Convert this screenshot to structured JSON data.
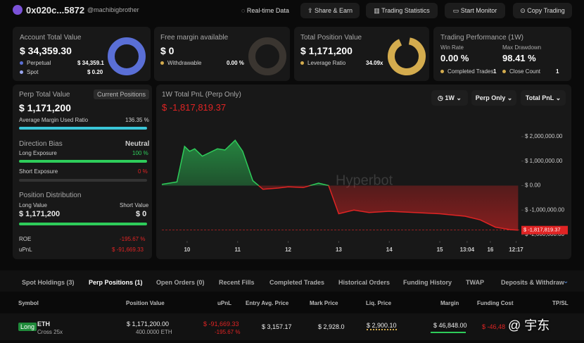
{
  "header": {
    "account": "0x020c...5872",
    "handle": "@machibigbrother",
    "buttons": [
      "Real-time Data",
      "Share & Earn",
      "Trading Statistics",
      "Start Monitor",
      "Copy Trading"
    ]
  },
  "account_total": {
    "title": "Account Total Value",
    "value": "$ 34,359.30",
    "perpetual_label": "Perpetual",
    "perpetual": "$ 34,359.1",
    "spot_label": "Spot",
    "spot": "$ 0.20"
  },
  "free_margin": {
    "title": "Free margin available",
    "value": "$ 0",
    "withdrawable_label": "Withdrawable",
    "withdrawable": "0.00 %"
  },
  "position_value": {
    "title": "Total Position Value",
    "value": "$ 1,171,200",
    "leverage_label": "Leverage Ratio",
    "leverage": "34.09x"
  },
  "performance": {
    "title": "Trading Performance (1W)",
    "win_label": "Win Rate",
    "win": "0.00 %",
    "drawdown_label": "Max Drawdown",
    "drawdown": "98.41 %",
    "completed_label": "Completed Trades",
    "completed": "1",
    "close_label": "Close Count",
    "close": "1"
  },
  "perp": {
    "title": "Perp Total Value",
    "tag": "Current Positions",
    "value": "$ 1,171,200",
    "margin_label": "Average Margin Used Ratio",
    "margin": "136.35 %",
    "bias_label": "Direction Bias",
    "bias": "Neutral",
    "long_label": "Long Exposure",
    "long": "100 %",
    "short_label": "Short Exposure",
    "short": "0 %",
    "distribution": "Position Distribution",
    "long_value_label": "Long Value",
    "short_value_label": "Short Value",
    "long_value": "$ 1,171,200",
    "short_value": "$ 0",
    "roe_label": "ROE",
    "roe": "-195.67 %",
    "upnl_label": "uPnL",
    "upnl": "$ -91,669.33"
  },
  "chart_data": {
    "type": "line",
    "title": "1W Total PnL (Perp Only)",
    "subtitle": "$ -1,817,819.37",
    "controls": [
      "1W",
      "Perp Only",
      "Total PnL"
    ],
    "watermark": "Hyperbot",
    "color": "#e02424",
    "positive_color": "#2ecc5a",
    "x": [
      9.5,
      9.65,
      9.8,
      9.95,
      10.05,
      10.15,
      10.3,
      10.45,
      10.6,
      10.75,
      10.95,
      11.1,
      11.3,
      11.5,
      11.8,
      12.0,
      12.3,
      12.6,
      12.8,
      13.0,
      13.3,
      13.6,
      14.0,
      14.5,
      15.0,
      15.5,
      15.8,
      16.1,
      16.4,
      16.55
    ],
    "values": [
      50000,
      100000,
      150000,
      1600000,
      1400000,
      1500000,
      1200000,
      1350000,
      1500000,
      1450000,
      1850000,
      1400000,
      200000,
      -150000,
      -100000,
      -50000,
      -80000,
      100000,
      0,
      -1150000,
      -1000000,
      -1100000,
      -1050000,
      -1100000,
      -1150000,
      -1250000,
      -1400000,
      -1700000,
      -1800000,
      -1817819.37
    ],
    "last_label": "$ -1,817,819.37",
    "xlim": [
      9.5,
      16.6
    ],
    "xticks": [
      {
        "value": 10,
        "label": "10"
      },
      {
        "value": 11,
        "label": "11"
      },
      {
        "value": 12,
        "label": "12"
      },
      {
        "value": 13,
        "label": "13"
      },
      {
        "value": 14,
        "label": "14"
      },
      {
        "value": 15,
        "label": "15"
      },
      {
        "value": 15.54,
        "label": "13:04"
      },
      {
        "value": 16,
        "label": "16"
      },
      {
        "value": 16.51,
        "label": "12:17"
      }
    ],
    "ylim": [
      -2200000,
      2400000
    ],
    "yticks": [
      {
        "value": 2000000,
        "label": "$ 2,000,000.00"
      },
      {
        "value": 1000000,
        "label": "$ 1,000,000.00"
      },
      {
        "value": 0,
        "label": "$ 0.00"
      },
      {
        "value": -1000000,
        "label": "$ -1,000,000.00"
      },
      {
        "value": -2000000,
        "label": "$ -2,000,000.00"
      }
    ],
    "grid": false
  },
  "tabs": [
    "Spot Holdings (3)",
    "Perp Positions (1)",
    "Open Orders (0)",
    "Recent Fills",
    "Completed Trades",
    "Historical Orders",
    "Funding History",
    "TWAP",
    "Deposits & Withdraw"
  ],
  "table": {
    "headers": [
      "Symbol",
      "Position Value",
      "uPnL",
      "Entry Avg. Price",
      "Mark Price",
      "Liq. Price",
      "Margin",
      "Funding Cost",
      "TP/SL"
    ],
    "rows": [
      {
        "side": "Long",
        "symbol": "ETH",
        "mode": "Cross 25x",
        "position_value": "$ 1,171,200.00",
        "size": "400.0000 ETH",
        "upnl": "$ -91,669.33",
        "upnl_pct": "-195.67 %",
        "entry": "$ 3,157.17",
        "mark": "$ 2,928.0",
        "liq": "$ 2,900.10",
        "margin": "$ 46,848.00",
        "funding": "$ -46,48"
      }
    ]
  },
  "overlay": "@ 宇东"
}
